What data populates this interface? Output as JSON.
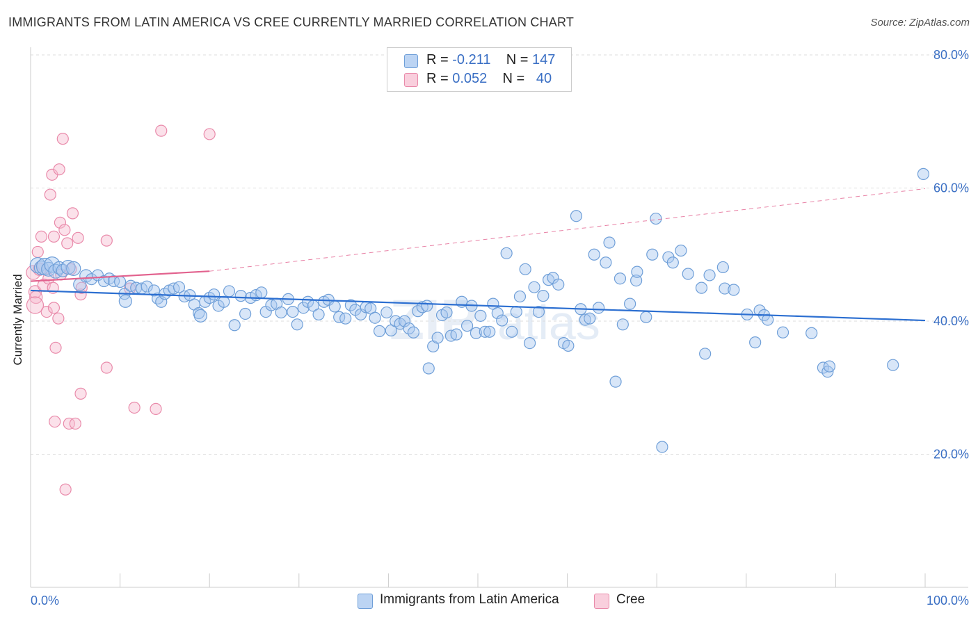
{
  "header": {
    "title": "IMMIGRANTS FROM LATIN AMERICA VS CREE CURRENTLY MARRIED CORRELATION CHART",
    "source": "Source: ZipAtlas.com"
  },
  "legend": {
    "rows": [
      {
        "r_label": "R =",
        "r_value": "-0.211",
        "n_label": "N =",
        "n_value": "147"
      },
      {
        "r_label": "R =",
        "r_value": "0.052",
        "n_label": "N =",
        "n_value": "40"
      }
    ]
  },
  "watermark": {
    "zip": "ZIP",
    "atlas": "atlas"
  },
  "colors": {
    "blue_fill": "#a9c8ef",
    "blue_stroke": "#6f9fd8",
    "blue_line": "#2c6fd1",
    "pink_fill": "#f6bcd0",
    "pink_stroke": "#e98aaa",
    "pink_line": "#e2628e",
    "tick_label": "#3a6fc4",
    "grid": "#dddddd"
  },
  "chart_data": {
    "type": "scatter",
    "title": "IMMIGRANTS FROM LATIN AMERICA VS CREE CURRENTLY MARRIED CORRELATION CHART",
    "xlabel": "",
    "ylabel": "Currently Married",
    "xlim": [
      0,
      100
    ],
    "ylim": [
      0,
      85
    ],
    "x_tick_labels": [
      "0.0%",
      "100.0%"
    ],
    "y_ticks": [
      20,
      40,
      60,
      80
    ],
    "y_tick_labels": [
      "20.0%",
      "40.0%",
      "60.0%",
      "80.0%"
    ],
    "grid": "horizontal dashed",
    "legend_placement": "top-center",
    "series": [
      {
        "name": "Immigrants from Latin America",
        "color": "#6f9fd8",
        "r": -0.211,
        "n": 147,
        "trend": {
          "x": [
            0,
            100
          ],
          "y": [
            44.6,
            40.1
          ],
          "style": "solid"
        },
        "points": [
          [
            0.8,
            48.4,
            11
          ],
          [
            1.2,
            48.0,
            10
          ],
          [
            1.6,
            48.2,
            12
          ],
          [
            2.0,
            47.8,
            10
          ],
          [
            2.4,
            48.5,
            11
          ],
          [
            2.8,
            47.5,
            10
          ],
          [
            3.2,
            48.0,
            9
          ],
          [
            3.6,
            47.6,
            9
          ],
          [
            4.2,
            48.1,
            10
          ],
          [
            4.8,
            47.9,
            10
          ],
          [
            5.5,
            45.5,
            9
          ],
          [
            6.2,
            46.8,
            9
          ],
          [
            6.8,
            46.3,
            8
          ],
          [
            7.5,
            46.9,
            8
          ],
          [
            8.2,
            46.0,
            8
          ],
          [
            8.8,
            46.4,
            8
          ],
          [
            9.3,
            46.0,
            8
          ],
          [
            10.0,
            45.9,
            8
          ],
          [
            10.5,
            44.1,
            8
          ],
          [
            10.6,
            43.0,
            9
          ],
          [
            11.2,
            45.3,
            8
          ],
          [
            11.8,
            45.0,
            8
          ],
          [
            12.4,
            44.9,
            8
          ],
          [
            13.0,
            45.2,
            8
          ],
          [
            13.8,
            44.6,
            8
          ],
          [
            14.2,
            43.4,
            8
          ],
          [
            14.6,
            42.9,
            8
          ],
          [
            15.0,
            44.1,
            8
          ],
          [
            15.5,
            44.6,
            8
          ],
          [
            16.0,
            44.9,
            8
          ],
          [
            16.6,
            45.1,
            8
          ],
          [
            17.2,
            43.7,
            8
          ],
          [
            17.8,
            43.9,
            8
          ],
          [
            18.3,
            42.5,
            8
          ],
          [
            18.8,
            41.2,
            8
          ],
          [
            19.0,
            40.8,
            9
          ],
          [
            19.5,
            42.9,
            8
          ],
          [
            20.0,
            43.5,
            8
          ],
          [
            20.5,
            44.0,
            8
          ],
          [
            21.0,
            42.3,
            8
          ],
          [
            21.6,
            42.9,
            8
          ],
          [
            22.2,
            44.5,
            8
          ],
          [
            22.8,
            39.4,
            8
          ],
          [
            23.5,
            43.8,
            8
          ],
          [
            24.0,
            41.1,
            8
          ],
          [
            24.6,
            43.5,
            8
          ],
          [
            25.2,
            43.9,
            8
          ],
          [
            25.8,
            44.3,
            8
          ],
          [
            26.3,
            41.4,
            8
          ],
          [
            26.9,
            42.4,
            8
          ],
          [
            27.5,
            42.6,
            8
          ],
          [
            28.0,
            41.3,
            8
          ],
          [
            28.8,
            43.3,
            8
          ],
          [
            29.3,
            41.4,
            8
          ],
          [
            29.8,
            39.5,
            8
          ],
          [
            30.5,
            42.0,
            8
          ],
          [
            31.0,
            42.9,
            8
          ],
          [
            31.6,
            42.3,
            8
          ],
          [
            32.2,
            41.0,
            8
          ],
          [
            32.8,
            42.9,
            8
          ],
          [
            33.3,
            43.2,
            8
          ],
          [
            34.0,
            42.2,
            8
          ],
          [
            34.5,
            40.6,
            8
          ],
          [
            35.2,
            40.4,
            8
          ],
          [
            35.8,
            42.4,
            8
          ],
          [
            36.3,
            41.7,
            8
          ],
          [
            36.9,
            41.0,
            8
          ],
          [
            37.5,
            42.1,
            8
          ],
          [
            38.0,
            41.9,
            8
          ],
          [
            38.5,
            40.5,
            8
          ],
          [
            39.0,
            38.5,
            8
          ],
          [
            39.8,
            41.3,
            8
          ],
          [
            40.3,
            38.6,
            8
          ],
          [
            40.8,
            40.0,
            8
          ],
          [
            41.3,
            39.6,
            8
          ],
          [
            41.8,
            40.0,
            8
          ],
          [
            42.3,
            38.9,
            8
          ],
          [
            42.8,
            38.3,
            8
          ],
          [
            43.3,
            41.5,
            8
          ],
          [
            43.8,
            42.1,
            8
          ],
          [
            44.3,
            42.3,
            8
          ],
          [
            45.0,
            36.2,
            8
          ],
          [
            44.5,
            32.9,
            8
          ],
          [
            45.5,
            37.5,
            8
          ],
          [
            46.0,
            40.9,
            8
          ],
          [
            46.5,
            41.3,
            8
          ],
          [
            47.0,
            37.8,
            8
          ],
          [
            47.6,
            38.0,
            8
          ],
          [
            48.2,
            42.9,
            8
          ],
          [
            48.8,
            39.3,
            8
          ],
          [
            49.3,
            42.3,
            8
          ],
          [
            49.8,
            38.2,
            8
          ],
          [
            50.3,
            40.8,
            8
          ],
          [
            50.8,
            38.4,
            8
          ],
          [
            51.3,
            38.4,
            8
          ],
          [
            51.7,
            42.6,
            8
          ],
          [
            52.2,
            41.2,
            8
          ],
          [
            52.7,
            40.1,
            8
          ],
          [
            53.2,
            50.2,
            8
          ],
          [
            53.8,
            38.4,
            8
          ],
          [
            54.3,
            41.4,
            8
          ],
          [
            54.7,
            43.7,
            8
          ],
          [
            55.3,
            47.8,
            8
          ],
          [
            55.8,
            36.7,
            8
          ],
          [
            56.3,
            45.1,
            8
          ],
          [
            56.8,
            41.4,
            8
          ],
          [
            57.3,
            43.8,
            8
          ],
          [
            57.9,
            46.2,
            8
          ],
          [
            58.4,
            46.5,
            8
          ],
          [
            59.0,
            45.5,
            8
          ],
          [
            59.6,
            36.7,
            8
          ],
          [
            60.1,
            36.3,
            8
          ],
          [
            61.0,
            55.8,
            8
          ],
          [
            61.5,
            41.8,
            8
          ],
          [
            62.0,
            40.2,
            8
          ],
          [
            62.5,
            40.4,
            8
          ],
          [
            63.0,
            50.0,
            8
          ],
          [
            63.5,
            42.0,
            8
          ],
          [
            64.3,
            48.8,
            8
          ],
          [
            64.7,
            51.8,
            8
          ],
          [
            65.4,
            30.9,
            8
          ],
          [
            65.9,
            46.4,
            8
          ],
          [
            66.2,
            39.5,
            8
          ],
          [
            67.0,
            42.6,
            8
          ],
          [
            67.7,
            46.1,
            8
          ],
          [
            67.8,
            47.4,
            8
          ],
          [
            68.8,
            40.6,
            8
          ],
          [
            69.5,
            50.0,
            8
          ],
          [
            69.9,
            55.4,
            8
          ],
          [
            70.6,
            21.1,
            8
          ],
          [
            71.3,
            49.6,
            8
          ],
          [
            71.8,
            48.8,
            8
          ],
          [
            72.7,
            50.6,
            8
          ],
          [
            73.5,
            47.1,
            8
          ],
          [
            75.0,
            45.0,
            8
          ],
          [
            75.4,
            35.1,
            8
          ],
          [
            75.9,
            46.9,
            8
          ],
          [
            77.4,
            48.1,
            8
          ],
          [
            77.6,
            44.9,
            8
          ],
          [
            78.6,
            44.7,
            8
          ],
          [
            80.1,
            41.0,
            8
          ],
          [
            81.0,
            36.8,
            8
          ],
          [
            81.5,
            41.6,
            8
          ],
          [
            82.0,
            40.9,
            8
          ],
          [
            82.4,
            40.2,
            8
          ],
          [
            84.1,
            38.3,
            8
          ],
          [
            88.6,
            33.0,
            8
          ],
          [
            89.1,
            32.4,
            8
          ],
          [
            96.4,
            33.4,
            8
          ],
          [
            99.8,
            62.1,
            8
          ],
          [
            87.3,
            38.2,
            8
          ],
          [
            89.3,
            33.2,
            8
          ]
        ]
      },
      {
        "name": "Cree",
        "color": "#e98aaa",
        "r": 0.052,
        "n": 40,
        "trend": {
          "x": [
            0,
            20
          ],
          "y": [
            46.0,
            47.5
          ],
          "style": "solid",
          "extension": {
            "x": [
              20,
              100
            ],
            "y": [
              47.5,
              59.9
            ],
            "style": "dashed"
          }
        },
        "points": [
          [
            0.3,
            47.3,
            10
          ],
          [
            0.5,
            44.4,
            9
          ],
          [
            0.6,
            43.6,
            9
          ],
          [
            0.8,
            50.4,
            8
          ],
          [
            1.0,
            47.8,
            9
          ],
          [
            1.2,
            52.7,
            8
          ],
          [
            1.5,
            45.4,
            9
          ],
          [
            1.8,
            41.4,
            8
          ],
          [
            2.0,
            46.4,
            8
          ],
          [
            2.2,
            59.0,
            8
          ],
          [
            2.4,
            62.0,
            8
          ],
          [
            2.5,
            45.0,
            8
          ],
          [
            2.6,
            42.0,
            8
          ],
          [
            2.6,
            52.7,
            8
          ],
          [
            2.7,
            24.9,
            8
          ],
          [
            2.8,
            36.0,
            8
          ],
          [
            3.1,
            40.4,
            8
          ],
          [
            3.2,
            62.8,
            8
          ],
          [
            3.3,
            54.8,
            8
          ],
          [
            3.4,
            47.0,
            8
          ],
          [
            3.6,
            67.4,
            8
          ],
          [
            3.8,
            53.7,
            8
          ],
          [
            3.9,
            14.7,
            8
          ],
          [
            4.1,
            51.7,
            8
          ],
          [
            4.3,
            24.6,
            8
          ],
          [
            4.5,
            47.8,
            8
          ],
          [
            4.7,
            56.2,
            8
          ],
          [
            5.0,
            24.6,
            8
          ],
          [
            5.3,
            52.5,
            8
          ],
          [
            5.6,
            44.0,
            8
          ],
          [
            5.6,
            29.1,
            8
          ],
          [
            5.7,
            45.0,
            8
          ],
          [
            8.5,
            52.1,
            8
          ],
          [
            8.5,
            33.0,
            8
          ],
          [
            11.1,
            44.9,
            8
          ],
          [
            11.6,
            27.0,
            8
          ],
          [
            14.0,
            26.8,
            8
          ],
          [
            14.6,
            68.6,
            8
          ],
          [
            20.0,
            68.1,
            8
          ],
          [
            0.5,
            42.4,
            12
          ]
        ]
      }
    ]
  },
  "axis": {
    "y_title": "Currently Married"
  },
  "bottom_legend": {
    "items": [
      {
        "label": "Immigrants from Latin America"
      },
      {
        "label": "Cree"
      }
    ]
  }
}
